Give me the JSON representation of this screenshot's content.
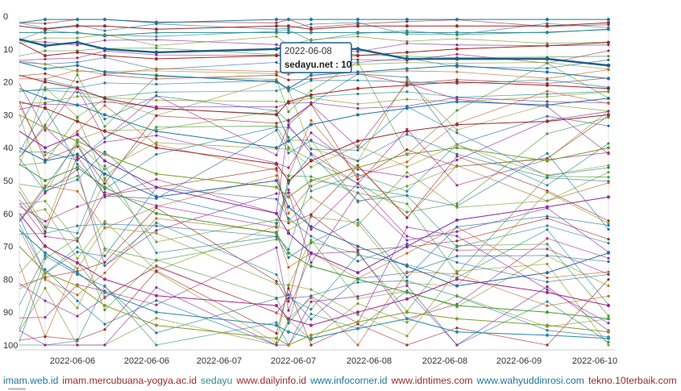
{
  "chart_data": {
    "type": "line",
    "title": "",
    "xlabel": "",
    "ylabel": "",
    "ylim": [
      100,
      0
    ],
    "yticks": [
      0,
      10,
      20,
      30,
      40,
      50,
      60,
      70,
      80,
      90,
      100
    ],
    "x_tick_labels": [
      "2022-06-06",
      "2022-06-06",
      "2022-06-07",
      "2022-06-07",
      "2022-06-08",
      "2022-06-08",
      "2022-06-09",
      "2022-06-10"
    ],
    "grid": "vertical",
    "legend_position": "bottom",
    "snapshots": 13,
    "legend": [
      {
        "name": "imam.web.id",
        "color": "#1f77a0"
      },
      {
        "name": "imam.mercubuana-yogya.ac.id",
        "color": "#9c2a2a"
      },
      {
        "name": "sedayu",
        "color": "#2a8a8a"
      },
      {
        "name": "www.dailyinfo.id",
        "color": "#9c2a2a"
      },
      {
        "name": "www.infocorner.id",
        "color": "#1f77a0"
      },
      {
        "name": "www.idntimes.com",
        "color": "#9c2a2a"
      },
      {
        "name": "www.wahyuddinrosi.com",
        "color": "#1f77a0"
      },
      {
        "name": "tekno.10terbaik.com",
        "color": "#9c2a2a"
      }
    ],
    "highlight_series": {
      "name": "sedayu.net",
      "color": "#1f5f8a",
      "values": [
        7,
        9,
        8,
        10,
        11,
        10,
        9,
        10,
        10,
        13,
        13,
        13,
        15
      ]
    },
    "series": [
      {
        "name": "imam.web.id",
        "color": "#1f77a0",
        "values": [
          2,
          1,
          1,
          1,
          2,
          1,
          1,
          1,
          1,
          1,
          1,
          1,
          1
        ]
      },
      {
        "name": "imam.mercubuana-yogya.ac.id",
        "color": "#9c2a2a",
        "values": [
          3,
          4,
          3,
          3,
          4,
          3,
          3,
          4,
          3,
          3,
          3,
          3,
          2
        ]
      },
      {
        "name": "sedayu",
        "color": "#2a8a8a",
        "values": [
          5,
          5,
          5,
          6,
          5,
          5,
          5,
          5,
          5,
          5,
          5,
          5,
          4
        ]
      },
      {
        "name": "www.dailyinfo.id",
        "color": "#9c2a2a",
        "values": [
          8,
          12,
          11,
          12,
          13,
          12,
          12,
          12,
          12,
          11,
          10,
          9,
          8
        ]
      },
      {
        "name": "www.infocorner.id",
        "color": "#1f77a0",
        "values": [
          14,
          16,
          15,
          17,
          18,
          20,
          22,
          18,
          17,
          16,
          15,
          17,
          19
        ]
      },
      {
        "name": "www.idntimes.com",
        "color": "#9c2a2a",
        "values": [
          18,
          20,
          22,
          25,
          28,
          30,
          26,
          24,
          22,
          21,
          20,
          21,
          22
        ]
      },
      {
        "name": "www.wahyuddinrosi.com",
        "color": "#1f77a0",
        "values": [
          22,
          25,
          27,
          30,
          35,
          40,
          38,
          33,
          30,
          28,
          26,
          27,
          25
        ]
      },
      {
        "name": "tekno.10terbaik.com",
        "color": "#9c2a2a",
        "values": [
          26,
          28,
          32,
          35,
          40,
          45,
          50,
          44,
          38,
          35,
          33,
          32,
          30
        ]
      },
      {
        "name": "",
        "color": "#7b9a2a",
        "values": [
          30,
          34,
          38,
          42,
          48,
          52,
          55,
          50,
          46,
          42,
          40,
          44,
          40
        ]
      },
      {
        "name": "",
        "color": "#8a2aa0",
        "values": [
          35,
          40,
          36,
          44,
          52,
          60,
          66,
          72,
          78,
          70,
          62,
          58,
          55
        ]
      },
      {
        "name": "",
        "color": "#2a6aa0",
        "values": [
          40,
          44,
          42,
          48,
          55,
          50,
          58,
          64,
          70,
          76,
          82,
          78,
          72
        ]
      },
      {
        "name": "",
        "color": "#4a9a3a",
        "values": [
          45,
          50,
          46,
          52,
          60,
          66,
          72,
          76,
          80,
          84,
          88,
          90,
          92
        ]
      },
      {
        "name": "",
        "color": "#a02a8a",
        "values": [
          60,
          70,
          75,
          80,
          85,
          88,
          92,
          94,
          90,
          86,
          80,
          84,
          88
        ]
      },
      {
        "name": "",
        "color": "#2a8aa0",
        "values": [
          65,
          72,
          78,
          84,
          90,
          94,
          96,
          98,
          95,
          92,
          96,
          97,
          98
        ]
      },
      {
        "name": "",
        "color": "#8a9a2a",
        "values": [
          70,
          78,
          82,
          88,
          94,
          98,
          100,
          97,
          93,
          90,
          92,
          94,
          96
        ]
      }
    ]
  }
}
